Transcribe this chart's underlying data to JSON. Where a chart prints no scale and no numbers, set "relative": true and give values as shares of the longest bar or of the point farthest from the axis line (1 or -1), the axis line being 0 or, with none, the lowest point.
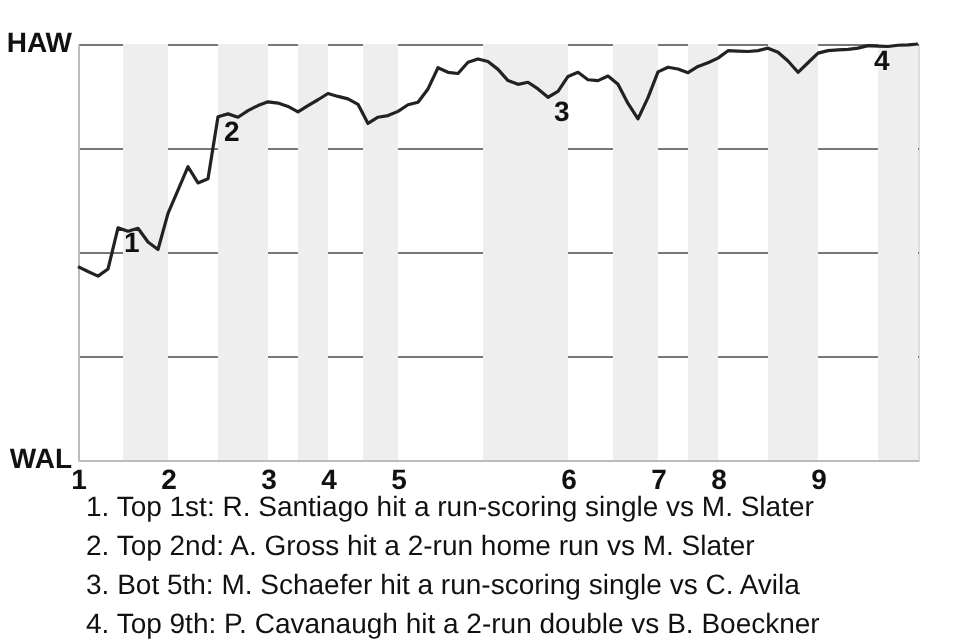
{
  "chart_data": {
    "type": "line",
    "relative": true,
    "categories": [
      "1",
      null,
      null,
      null,
      null,
      null,
      null,
      null,
      null,
      "2",
      null,
      null,
      null,
      null,
      null,
      null,
      null,
      null,
      null,
      "3",
      null,
      null,
      null,
      null,
      null,
      "4",
      null,
      null,
      null,
      null,
      null,
      null,
      "5",
      null,
      null,
      null,
      null,
      null,
      null,
      null,
      null,
      null,
      null,
      null,
      null,
      null,
      null,
      null,
      null,
      "6",
      null,
      null,
      null,
      null,
      null,
      null,
      null,
      null,
      "7",
      null,
      null,
      null,
      null,
      null,
      "8",
      null,
      null,
      null,
      null,
      null,
      null,
      null,
      null,
      null,
      "9",
      null,
      null,
      null,
      null,
      null,
      null,
      null,
      null,
      null,
      null
    ],
    "series": [
      {
        "color": "#222222",
        "values": [
          0.465,
          0.453,
          0.442,
          0.459,
          0.558,
          0.55,
          0.557,
          0.524,
          0.506,
          0.593,
          0.649,
          0.705,
          0.666,
          0.676,
          0.825,
          0.832,
          0.824,
          0.84,
          0.852,
          0.861,
          0.858,
          0.85,
          0.837,
          0.852,
          0.866,
          0.881,
          0.874,
          0.868,
          0.855,
          0.809,
          0.824,
          0.828,
          0.838,
          0.854,
          0.86,
          0.892,
          0.943,
          0.932,
          0.929,
          0.956,
          0.964,
          0.958,
          0.939,
          0.912,
          0.903,
          0.908,
          0.892,
          0.872,
          0.886,
          0.922,
          0.932,
          0.914,
          0.912,
          0.923,
          0.903,
          0.857,
          0.82,
          0.871,
          0.933,
          0.944,
          0.94,
          0.931,
          0.946,
          0.955,
          0.966,
          0.984,
          0.983,
          0.982,
          0.984,
          0.99,
          0.98,
          0.959,
          0.932,
          0.955,
          0.978,
          0.984,
          0.986,
          0.987,
          0.99,
          0.996,
          0.995,
          0.994,
          0.997,
          0.998,
          1
        ]
      }
    ],
    "grid": "y",
    "marker": "none",
    "line_style": "solid",
    "annotations": [
      "HAW",
      "WAL",
      {
        "text": "1",
        "y": 0.558
      },
      {
        "text": "2",
        "y": 0.825
      },
      {
        "text": "3",
        "y": 0.872
      },
      {
        "text": "4",
        "y": 0.996
      },
      "1. Top 1st: R. Santiago hit a run-scoring single vs M. Slater",
      "2. Top 2nd: A. Gross hit a 2-run home run vs M. Slater",
      "3. Bot 5th: M. Schaefer hit a run-scoring single vs C. Avila",
      "4. Top 9th: P. Cavanaugh hit a 2-run double vs B. Boeckner"
    ]
  }
}
